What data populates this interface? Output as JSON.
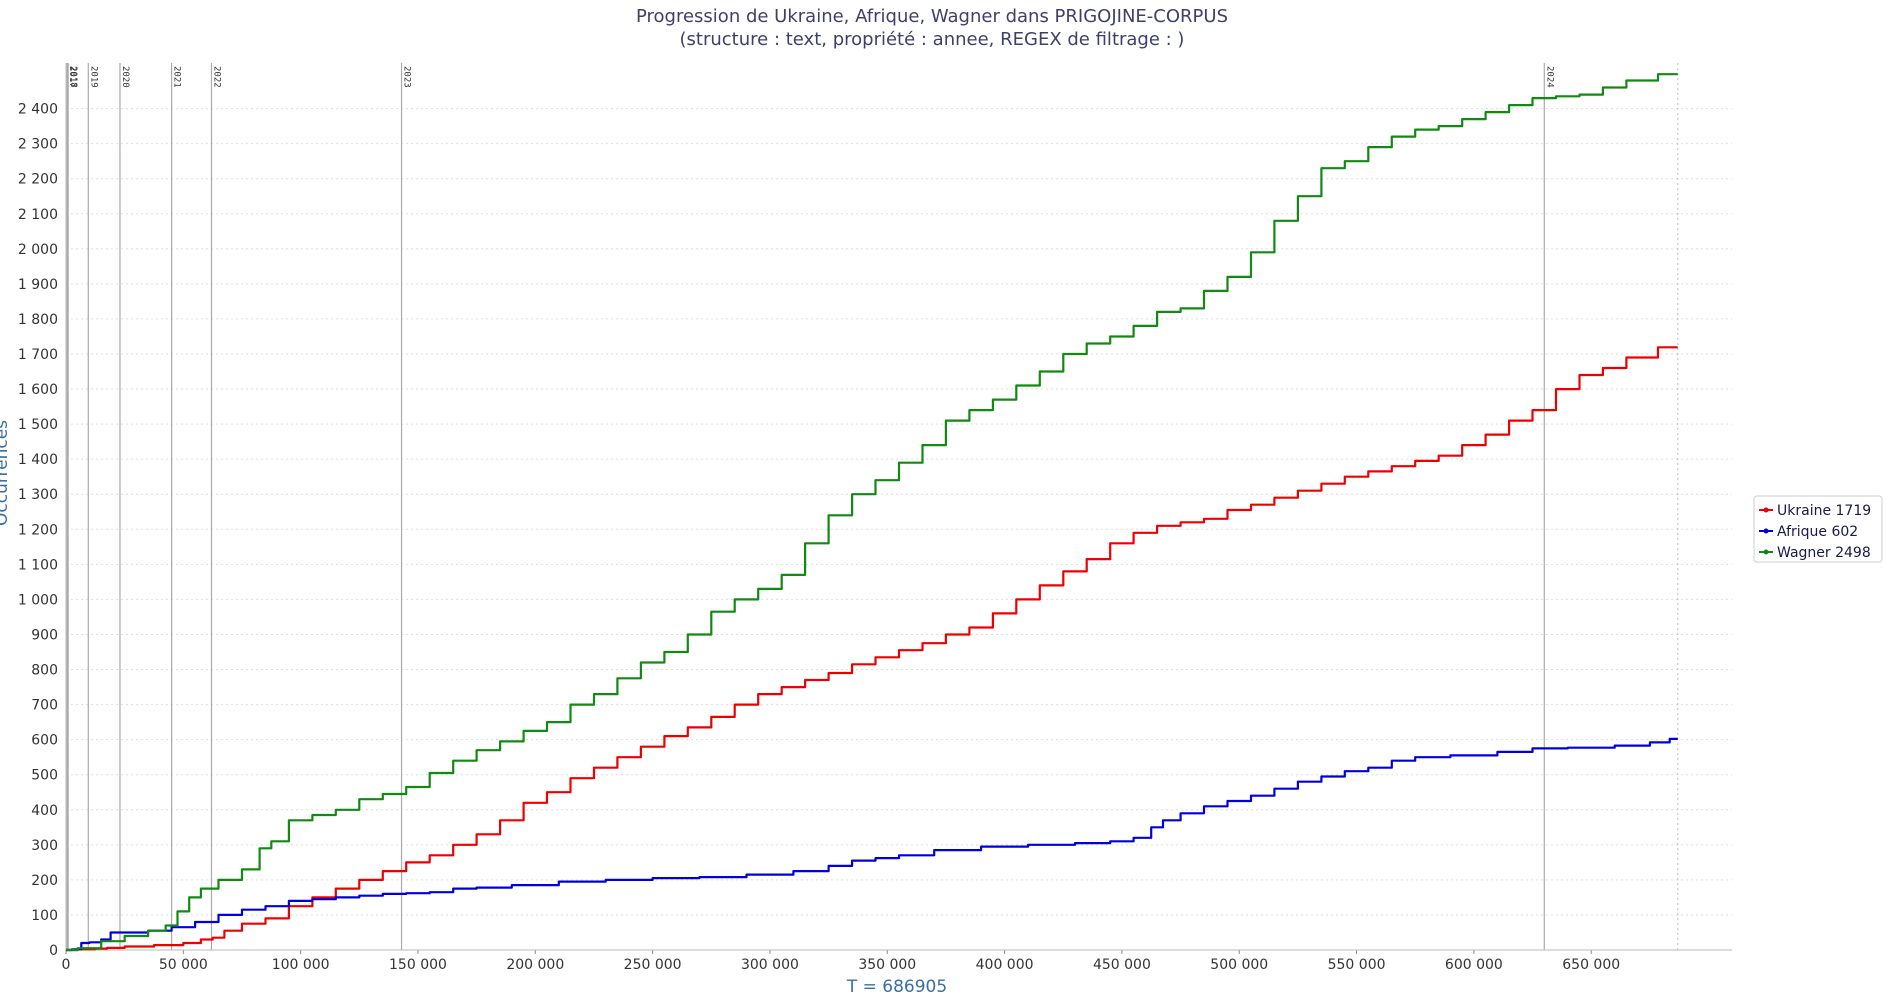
{
  "chart_data": {
    "type": "line",
    "title": "Progression de Ukraine, Afrique, Wagner dans PRIGOJINE-CORPUS",
    "subtitle": "(structure :  text, propriété :  annee, REGEX de filtrage : )",
    "xlabel": "T = 686905",
    "ylabel": "Occurrences",
    "xlim": [
      0,
      710000
    ],
    "ylim": [
      0,
      2500
    ],
    "x_ticks": [
      0,
      50000,
      100000,
      150000,
      200000,
      250000,
      300000,
      350000,
      400000,
      450000,
      500000,
      550000,
      600000,
      650000
    ],
    "x_tick_labels": [
      "0",
      "50 000",
      "100 000",
      "150 000",
      "200 000",
      "250 000",
      "300 000",
      "350 000",
      "400 000",
      "450 000",
      "500 000",
      "550 000",
      "600 000",
      "650 000"
    ],
    "y_ticks": [
      0,
      100,
      200,
      300,
      400,
      500,
      600,
      700,
      800,
      900,
      1000,
      1100,
      1200,
      1300,
      1400,
      1500,
      1600,
      1700,
      1800,
      1900,
      2000,
      2100,
      2200,
      2300,
      2400
    ],
    "y_tick_labels": [
      "0",
      "100",
      "200",
      "300",
      "400",
      "500",
      "600",
      "700",
      "800",
      "900",
      "1 000",
      "1 100",
      "1 200",
      "1 300",
      "1 400",
      "1 500",
      "1 600",
      "1 700",
      "1 800",
      "1 900",
      "2 000",
      "2 100",
      "2 200",
      "2 300",
      "2 400"
    ],
    "grid": true,
    "legend_position": "right",
    "year_markers": [
      {
        "label": "2017",
        "x": 500
      },
      {
        "label": "2018",
        "x": 900
      },
      {
        "label": "2019",
        "x": 9500
      },
      {
        "label": "2020",
        "x": 23000
      },
      {
        "label": "2021",
        "x": 45000
      },
      {
        "label": "2022",
        "x": 62000
      },
      {
        "label": "2023",
        "x": 143000
      },
      {
        "label": "2024",
        "x": 630000
      }
    ],
    "end_marker_x": 686905,
    "series": [
      {
        "name": "Ukraine 1719",
        "color": "#ee0000",
        "x": [
          0,
          10000,
          15000,
          20000,
          30000,
          45000,
          55000,
          60000,
          65000,
          70000,
          80000,
          90000,
          100000,
          110000,
          120000,
          130000,
          140000,
          150000,
          160000,
          170000,
          180000,
          190000,
          200000,
          210000,
          220000,
          230000,
          240000,
          250000,
          260000,
          270000,
          280000,
          290000,
          300000,
          310000,
          320000,
          330000,
          340000,
          350000,
          360000,
          370000,
          380000,
          390000,
          400000,
          410000,
          420000,
          430000,
          440000,
          450000,
          460000,
          470000,
          480000,
          490000,
          500000,
          510000,
          520000,
          530000,
          540000,
          550000,
          560000,
          570000,
          580000,
          590000,
          600000,
          610000,
          620000,
          630000,
          640000,
          650000,
          660000,
          670000,
          686905
        ],
        "values": [
          0,
          2,
          4,
          6,
          10,
          14,
          20,
          30,
          35,
          55,
          75,
          90,
          125,
          150,
          175,
          200,
          225,
          250,
          270,
          300,
          330,
          370,
          420,
          450,
          490,
          520,
          550,
          580,
          610,
          635,
          665,
          700,
          730,
          750,
          770,
          790,
          815,
          835,
          855,
          875,
          900,
          920,
          960,
          1000,
          1040,
          1080,
          1115,
          1160,
          1190,
          1210,
          1220,
          1230,
          1255,
          1270,
          1290,
          1310,
          1330,
          1350,
          1365,
          1380,
          1395,
          1410,
          1440,
          1470,
          1510,
          1540,
          1600,
          1640,
          1660,
          1690,
          1719
        ]
      },
      {
        "name": "Afrique 602",
        "color": "#0000dd",
        "x": [
          0,
          5000,
          8000,
          12000,
          18000,
          20000,
          30000,
          40000,
          50000,
          60000,
          70000,
          80000,
          90000,
          100000,
          110000,
          120000,
          130000,
          140000,
          150000,
          160000,
          170000,
          180000,
          200000,
          220000,
          240000,
          260000,
          280000,
          300000,
          320000,
          330000,
          340000,
          350000,
          360000,
          380000,
          400000,
          420000,
          440000,
          450000,
          460000,
          465000,
          470000,
          480000,
          490000,
          500000,
          510000,
          520000,
          530000,
          540000,
          550000,
          560000,
          570000,
          580000,
          600000,
          620000,
          630000,
          650000,
          670000,
          680000,
          686905
        ],
        "values": [
          0,
          2,
          20,
          22,
          30,
          50,
          50,
          55,
          65,
          80,
          100,
          115,
          125,
          140,
          145,
          150,
          155,
          160,
          162,
          165,
          175,
          178,
          185,
          195,
          200,
          205,
          208,
          215,
          225,
          240,
          255,
          262,
          270,
          285,
          295,
          300,
          305,
          310,
          320,
          350,
          370,
          390,
          410,
          425,
          440,
          460,
          480,
          495,
          510,
          520,
          540,
          550,
          555,
          565,
          575,
          577,
          583,
          592,
          602
        ]
      },
      {
        "name": "Wagner 2498",
        "color": "#108a10",
        "x": [
          0,
          10000,
          20000,
          30000,
          40000,
          45000,
          50000,
          55000,
          60000,
          70000,
          80000,
          85000,
          90000,
          100000,
          110000,
          120000,
          130000,
          140000,
          150000,
          160000,
          170000,
          180000,
          190000,
          200000,
          210000,
          220000,
          230000,
          240000,
          250000,
          260000,
          270000,
          280000,
          290000,
          300000,
          310000,
          320000,
          330000,
          340000,
          350000,
          360000,
          370000,
          380000,
          390000,
          400000,
          410000,
          420000,
          430000,
          440000,
          450000,
          460000,
          470000,
          480000,
          490000,
          500000,
          510000,
          520000,
          530000,
          540000,
          550000,
          560000,
          570000,
          580000,
          590000,
          600000,
          610000,
          620000,
          630000,
          640000,
          650000,
          660000,
          670000,
          686905
        ],
        "values": [
          0,
          5,
          25,
          40,
          55,
          70,
          110,
          150,
          175,
          200,
          230,
          290,
          310,
          370,
          385,
          400,
          430,
          445,
          465,
          505,
          540,
          570,
          595,
          625,
          650,
          700,
          730,
          775,
          820,
          850,
          900,
          965,
          1000,
          1030,
          1070,
          1160,
          1240,
          1300,
          1340,
          1390,
          1440,
          1510,
          1540,
          1570,
          1610,
          1650,
          1700,
          1730,
          1750,
          1780,
          1820,
          1830,
          1880,
          1920,
          1990,
          2080,
          2150,
          2230,
          2250,
          2290,
          2320,
          2340,
          2350,
          2370,
          2390,
          2410,
          2430,
          2435,
          2440,
          2460,
          2480,
          2498
        ]
      }
    ]
  }
}
